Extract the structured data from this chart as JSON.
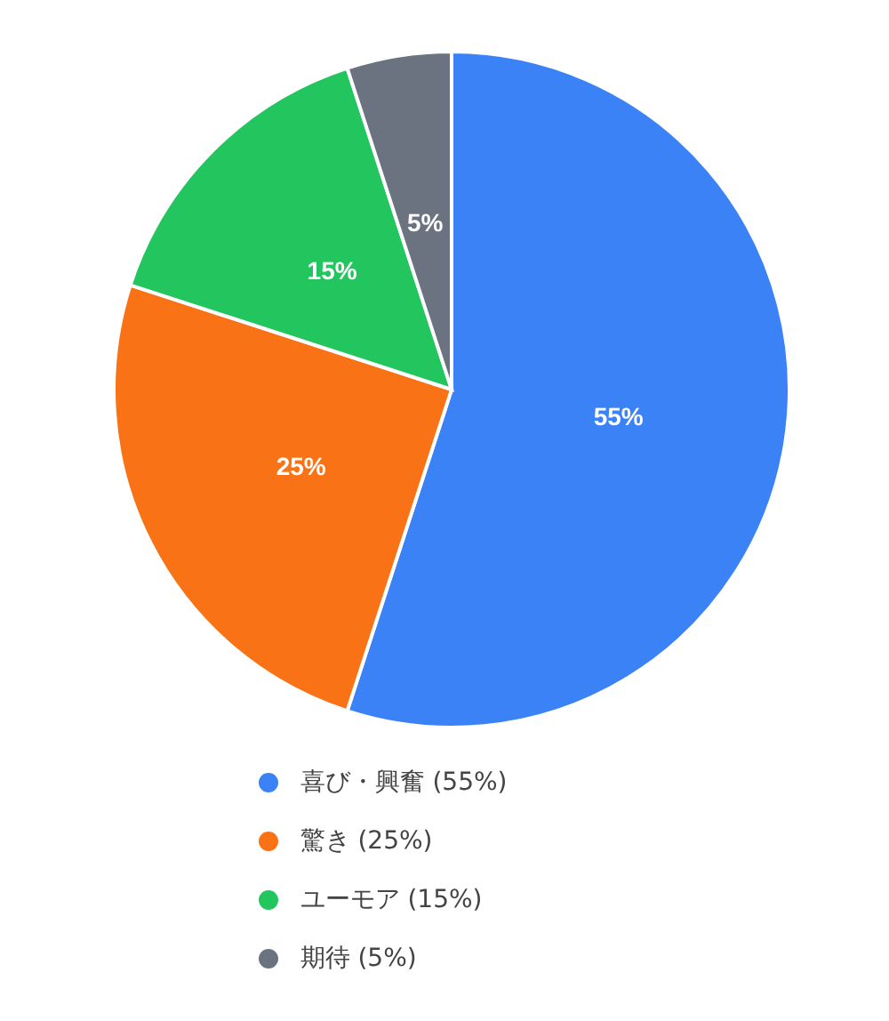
{
  "chart_data": {
    "type": "pie",
    "categories": [
      "喜び・興奮 (55%)",
      "驚き (25%)",
      "ユーモア (15%)",
      "期待 (5%)"
    ],
    "values": [
      55,
      25,
      15,
      5
    ],
    "colors": [
      "#3b82f6",
      "#f97316",
      "#22c55e",
      "#6b7280"
    ],
    "value_labels": [
      "55%",
      "25%",
      "15%",
      "5%"
    ],
    "legend": "bottom"
  }
}
